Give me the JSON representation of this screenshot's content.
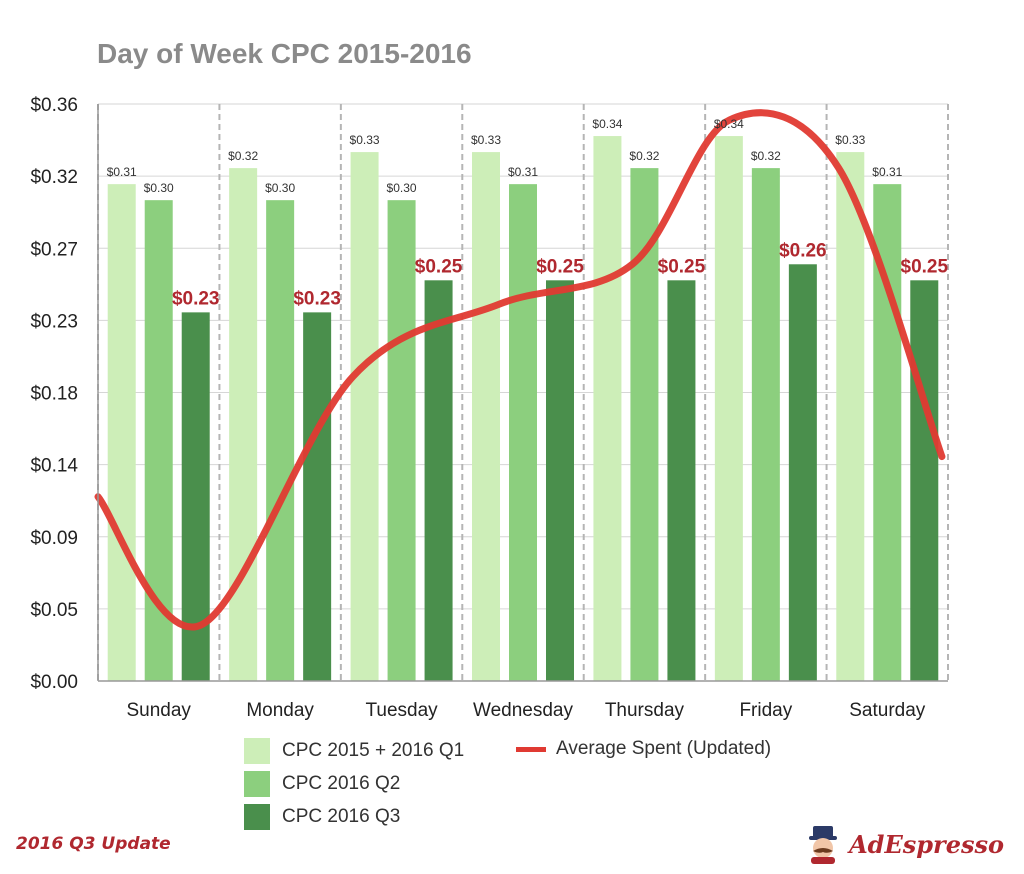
{
  "chart_data": {
    "type": "bar",
    "title": "Day of Week CPC 2015-2016",
    "categories": [
      "Sunday",
      "Monday",
      "Tuesday",
      "Wednesday",
      "Thursday",
      "Friday",
      "Saturday"
    ],
    "y_ticks": [
      "$0.00",
      "$0.05",
      "$0.09",
      "$0.14",
      "$0.18",
      "$0.23",
      "$0.27",
      "$0.32",
      "$0.36"
    ],
    "ylim": [
      0,
      0.36
    ],
    "grid": true,
    "legend_position": "bottom",
    "series": [
      {
        "name": "CPC 2015 + 2016 Q1",
        "color": "#cdeeb8",
        "values": [
          0.31,
          0.32,
          0.33,
          0.33,
          0.34,
          0.34,
          0.33
        ],
        "labels": [
          "$0.31",
          "$0.32",
          "$0.33",
          "$0.33",
          "$0.34",
          "$0.34",
          "$0.33"
        ]
      },
      {
        "name": "CPC 2016 Q2",
        "color": "#8ccf7e",
        "values": [
          0.3,
          0.3,
          0.3,
          0.31,
          0.32,
          0.32,
          0.31
        ],
        "labels": [
          "$0.30",
          "$0.30",
          "$0.30",
          "$0.31",
          "$0.32",
          "$0.32",
          "$0.31"
        ]
      },
      {
        "name": "CPC 2016 Q3",
        "color": "#4a8f4c",
        "values": [
          0.23,
          0.23,
          0.25,
          0.25,
          0.25,
          0.26,
          0.25
        ],
        "labels": [
          "$0.23",
          "$0.23",
          "$0.25",
          "$0.25",
          "$0.25",
          "$0.26",
          "$0.25"
        ]
      }
    ],
    "line_series": {
      "name": "Average Spent (Updated)",
      "color": "#e03a32",
      "x": [
        0,
        0.85,
        2.1,
        3.3,
        4.4,
        5.2,
        6.1,
        6.95
      ],
      "values": [
        0.115,
        0.035,
        0.19,
        0.235,
        0.26,
        0.35,
        0.32,
        0.14
      ]
    }
  },
  "footer": {
    "note": "2016 Q3 Update",
    "brand": "AdEspresso"
  }
}
